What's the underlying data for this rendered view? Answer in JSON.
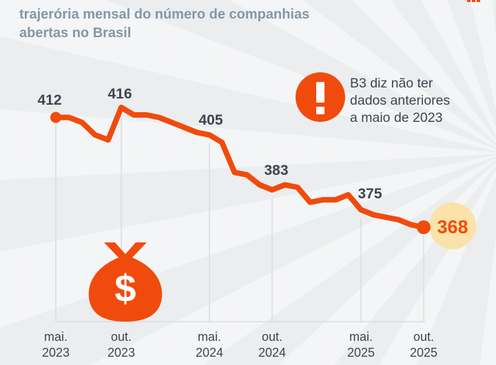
{
  "header": {
    "title_line1": "trajerória mensal do número de companhias",
    "title_line2": "abertas no Brasil"
  },
  "callout": {
    "lines": [
      "B3 diz não ter",
      "dados anteriores",
      "a maio de 2023"
    ]
  },
  "icons": {
    "money_bag_symbol": "$"
  },
  "colors": {
    "accent": "#F04B0C",
    "highlight_circle": "#FBE2A9",
    "title": "#8497A7",
    "text_dark": "#3E4550",
    "grid": "#D9DBDE",
    "background": "#ECEDEF"
  },
  "chart_data": {
    "type": "line",
    "title": "trajerória mensal do número de companhias abertas no Brasil",
    "x_unit": "month",
    "x_start": "mai. 2023",
    "x_end": "out. 2025",
    "ylim": [
      360,
      425
    ],
    "grid": "vertical-at-ticks",
    "legend": null,
    "series": [
      {
        "name": "companhias abertas",
        "values": [
          412,
          412,
          410,
          405,
          403,
          416,
          413,
          413,
          412,
          410,
          408,
          406,
          405,
          402,
          390,
          389,
          385,
          383,
          385,
          384,
          378,
          379,
          379,
          381,
          375,
          373,
          372,
          371,
          369,
          368
        ]
      }
    ],
    "x_ticks": [
      {
        "month": "mai.",
        "year": "2023",
        "month_index": 0,
        "value": 412
      },
      {
        "month": "out.",
        "year": "2023",
        "month_index": 5,
        "value": 416
      },
      {
        "month": "mai.",
        "year": "2024",
        "month_index": 12,
        "value": 405
      },
      {
        "month": "out.",
        "year": "2024",
        "month_index": 17,
        "value": 383
      },
      {
        "month": "mai.",
        "year": "2025",
        "month_index": 24,
        "value": 375
      },
      {
        "month": "out.",
        "year": "2025",
        "month_index": 29,
        "value": 368
      }
    ],
    "annotations": [
      {
        "type": "note",
        "text": "B3 diz não ter dados anteriores a maio de 2023"
      },
      {
        "type": "highlight",
        "point": "out. 2025",
        "value": 368
      }
    ]
  }
}
